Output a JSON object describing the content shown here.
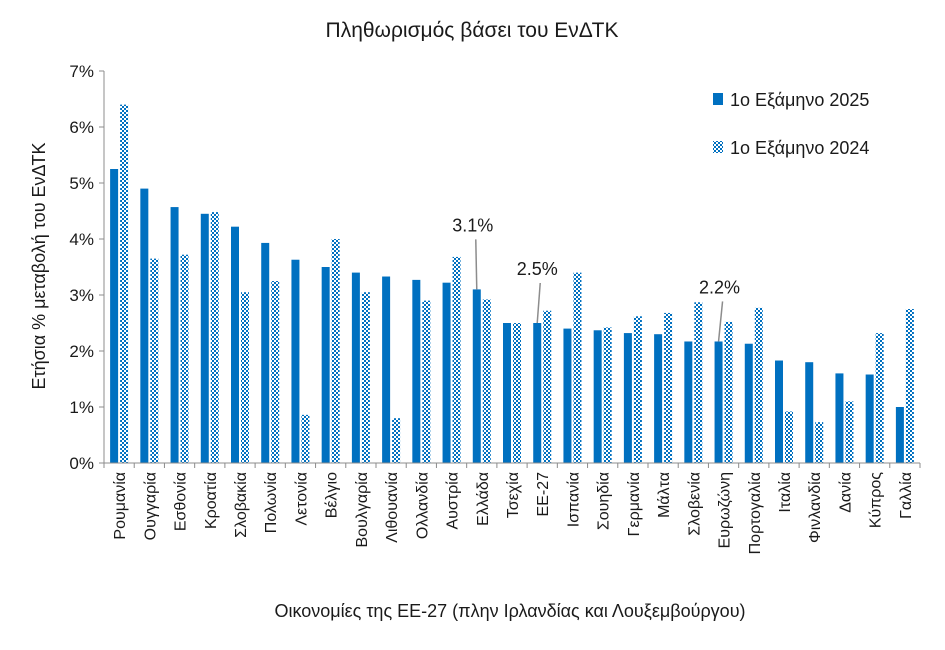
{
  "chart_data": {
    "type": "bar",
    "title": "Πληθωρισμός βάσει του ΕνΔΤΚ",
    "xlabel": "Οικονομίες της ΕΕ-27 (πλην Ιρλανδίας και Λουξεμβούργου)",
    "ylabel": "Ετήσια % μεταβολή του ΕνΔΤΚ",
    "ylim": [
      0,
      7
    ],
    "yticks": [
      "0%",
      "1%",
      "2%",
      "3%",
      "4%",
      "5%",
      "6%",
      "7%"
    ],
    "grid": false,
    "legend_position": "top-right",
    "categories": [
      "Ρουμανία",
      "Ουγγαρία",
      "Εσθονία",
      "Κροατία",
      "Σλοβακία",
      "Πολωνία",
      "Λετονία",
      "Βέλγιο",
      "Βουλγαρία",
      "Λιθουανία",
      "Ολλανδία",
      "Αυστρία",
      "Ελλάδα",
      "Τσεχία",
      "ΕΕ-27",
      "Ισπανία",
      "Σουηδία",
      "Γερμανία",
      "Μάλτα",
      "Σλοβενία",
      "Ευρωζώνη",
      "Πορτογαλία",
      "Ιταλία",
      "Φινλανδία",
      "Δανία",
      "Κύπρος",
      "Γαλλία"
    ],
    "series": [
      {
        "name": "1ο Εξάμηνο 2025",
        "color": "#0070c0",
        "pattern": "solid",
        "values": [
          5.25,
          4.9,
          4.57,
          4.45,
          4.22,
          3.93,
          3.63,
          3.5,
          3.4,
          3.33,
          3.27,
          3.22,
          3.1,
          2.5,
          2.5,
          2.4,
          2.37,
          2.32,
          2.3,
          2.17,
          2.17,
          2.13,
          1.83,
          1.8,
          1.6,
          1.58,
          1.0
        ]
      },
      {
        "name": "1ο Εξάμηνο 2024",
        "color": "#0070c0",
        "pattern": "hatched",
        "values": [
          6.4,
          3.65,
          3.72,
          4.48,
          3.05,
          3.25,
          0.86,
          4.0,
          3.05,
          0.8,
          2.9,
          3.68,
          2.92,
          2.5,
          2.72,
          3.4,
          2.42,
          2.62,
          2.68,
          2.87,
          2.52,
          2.77,
          0.92,
          0.73,
          1.1,
          2.32,
          2.75
        ]
      }
    ],
    "annotations": [
      {
        "text": "3.1%",
        "category": "Ελλάδα"
      },
      {
        "text": "2.5%",
        "category": "ΕΕ-27"
      },
      {
        "text": "2.2%",
        "category": "Ευρωζώνη"
      }
    ]
  }
}
